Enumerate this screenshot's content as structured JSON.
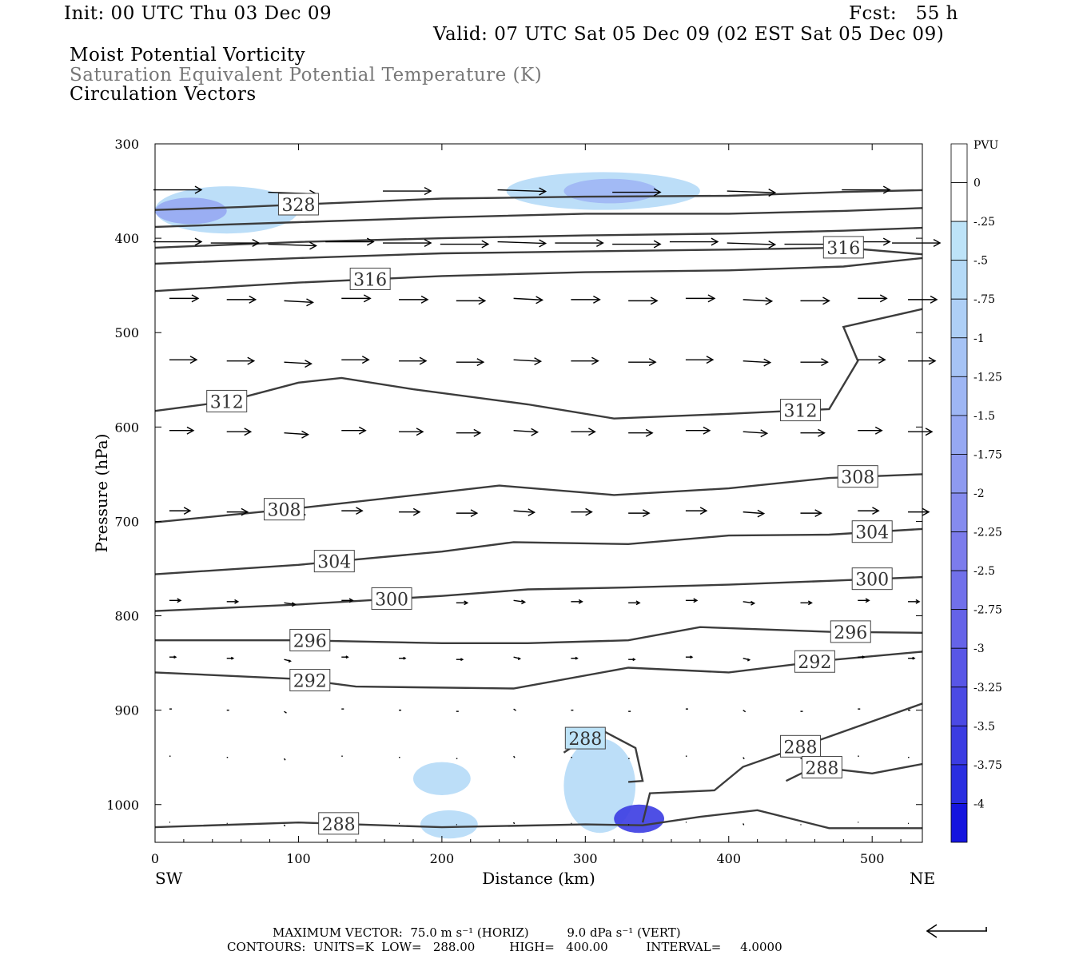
{
  "header": {
    "init": "Init: 00 UTC Thu 03 Dec 09",
    "fcst": "Fcst:   55 h",
    "valid": "Valid: 07 UTC Sat 05 Dec 09 (02 EST Sat 05 Dec 09)",
    "title_line1": "Moist Potential Vorticity",
    "title_line2": "Saturation Equivalent Potential Temperature (K)",
    "title_line3": "Circulation Vectors"
  },
  "footer": {
    "max_vector": "MAXIMUM VECTOR:  75.0 m s⁻¹ (HORIZ)          9.0 dPa s⁻¹ (VERT)",
    "contours": "CONTOURS:  UNITS=K  LOW=   288.00         HIGH=   400.00          INTERVAL=     4.0000"
  },
  "chart_data": {
    "type": "line",
    "xlabel": "Distance (km)",
    "ylabel": "Pressure (hPa)",
    "xlim": [
      0,
      535
    ],
    "ylim": [
      1040,
      300
    ],
    "xticks": [
      0,
      100,
      200,
      300,
      400,
      500
    ],
    "yticks": [
      300,
      400,
      500,
      600,
      700,
      800,
      900,
      1000
    ],
    "x_endpoints": {
      "left": "SW",
      "right": "NE"
    },
    "colorbar": {
      "unit": "PVU",
      "labels": [
        "0",
        "-.25",
        "-.5",
        "-.75",
        "-1",
        "-1.25",
        "-1.5",
        "-1.75",
        "-2",
        "-2.25",
        "-2.5",
        "-2.75",
        "-3",
        "-3.25",
        "-3.5",
        "-3.75",
        "-4"
      ],
      "colors": [
        "#ffffff",
        "#ffffff",
        "#bde3f8",
        "#b5daf7",
        "#aecff6",
        "#a6c3f5",
        "#9eb6f4",
        "#96a8f2",
        "#8e9af0",
        "#858bee",
        "#7c7cec",
        "#7170ea",
        "#6563e8",
        "#5856e6",
        "#4b4ae4",
        "#3b3ce2",
        "#2a2ee0",
        "#1515de"
      ]
    },
    "contour_series": [
      {
        "label": "328",
        "points": [
          [
            0,
            370
          ],
          [
            60,
            367
          ],
          [
            120,
            363
          ],
          [
            200,
            358
          ],
          [
            300,
            356
          ],
          [
            400,
            355
          ],
          [
            480,
            351
          ],
          [
            535,
            349
          ]
        ]
      },
      {
        "label": "",
        "points": [
          [
            0,
            388
          ],
          [
            100,
            383
          ],
          [
            200,
            378
          ],
          [
            300,
            374
          ],
          [
            400,
            374
          ],
          [
            480,
            371
          ],
          [
            535,
            368
          ]
        ]
      },
      {
        "label": "",
        "points": [
          [
            0,
            410
          ],
          [
            100,
            404
          ],
          [
            200,
            400
          ],
          [
            300,
            397
          ],
          [
            400,
            395
          ],
          [
            480,
            392
          ],
          [
            535,
            389
          ]
        ]
      },
      {
        "label": "316",
        "points": [
          [
            0,
            427
          ],
          [
            100,
            421
          ],
          [
            200,
            416
          ],
          [
            300,
            414
          ],
          [
            400,
            412
          ],
          [
            480,
            410
          ],
          [
            535,
            417
          ]
        ]
      },
      {
        "label": "316",
        "points": [
          [
            0,
            456
          ],
          [
            100,
            447
          ],
          [
            200,
            440
          ],
          [
            300,
            436
          ],
          [
            400,
            434
          ],
          [
            480,
            430
          ],
          [
            535,
            421
          ]
        ]
      },
      {
        "label": "312",
        "points": [
          [
            0,
            583
          ],
          [
            50,
            573
          ],
          [
            100,
            553
          ],
          [
            130,
            548
          ],
          [
            180,
            560
          ],
          [
            260,
            576
          ],
          [
            320,
            591
          ],
          [
            400,
            586
          ],
          [
            470,
            581
          ],
          [
            490,
            530
          ],
          [
            480,
            494
          ],
          [
            535,
            475
          ]
        ]
      },
      {
        "label": "308",
        "points": [
          [
            0,
            701
          ],
          [
            100,
            686
          ],
          [
            200,
            669
          ],
          [
            240,
            662
          ],
          [
            320,
            672
          ],
          [
            400,
            665
          ],
          [
            470,
            654
          ],
          [
            535,
            650
          ]
        ]
      },
      {
        "label": "304",
        "points": [
          [
            0,
            756
          ],
          [
            100,
            746
          ],
          [
            200,
            732
          ],
          [
            250,
            722
          ],
          [
            330,
            724
          ],
          [
            400,
            715
          ],
          [
            470,
            714
          ],
          [
            535,
            708
          ]
        ]
      },
      {
        "label": "300",
        "points": [
          [
            0,
            795
          ],
          [
            100,
            788
          ],
          [
            200,
            779
          ],
          [
            260,
            772
          ],
          [
            330,
            770
          ],
          [
            400,
            767
          ],
          [
            470,
            763
          ],
          [
            535,
            759
          ]
        ]
      },
      {
        "label": "296",
        "points": [
          [
            0,
            826
          ],
          [
            100,
            826
          ],
          [
            200,
            829
          ],
          [
            260,
            829
          ],
          [
            330,
            826
          ],
          [
            380,
            812
          ],
          [
            470,
            817
          ],
          [
            535,
            818
          ]
        ]
      },
      {
        "label": "292",
        "points": [
          [
            0,
            860
          ],
          [
            100,
            867
          ],
          [
            140,
            875
          ],
          [
            250,
            877
          ],
          [
            330,
            855
          ],
          [
            400,
            860
          ],
          [
            470,
            847
          ],
          [
            535,
            838
          ]
        ]
      },
      {
        "label": "288",
        "points": [
          [
            0,
            1024
          ],
          [
            100,
            1019
          ],
          [
            200,
            1024
          ],
          [
            300,
            1021
          ],
          [
            340,
            1022
          ],
          [
            380,
            1013
          ],
          [
            420,
            1006
          ],
          [
            470,
            1025
          ],
          [
            535,
            1025
          ]
        ]
      },
      {
        "label": "288",
        "points": [
          [
            340,
            1019
          ],
          [
            345,
            988
          ],
          [
            390,
            985
          ],
          [
            410,
            960
          ],
          [
            470,
            928
          ],
          [
            535,
            893
          ]
        ]
      },
      {
        "label": "288",
        "points": [
          [
            285,
            945
          ],
          [
            310,
            920
          ],
          [
            335,
            940
          ],
          [
            340,
            975
          ],
          [
            330,
            976
          ]
        ]
      },
      {
        "label": "288",
        "points": [
          [
            440,
            975
          ],
          [
            460,
            960
          ],
          [
            500,
            967
          ],
          [
            535,
            957
          ]
        ]
      }
    ],
    "pv_regions": [
      {
        "level": "-.5",
        "x": [
          0,
          100
        ],
        "y": [
          345,
          395
        ]
      },
      {
        "level": "-1.5",
        "x": [
          0,
          50
        ],
        "y": [
          357,
          385
        ]
      },
      {
        "level": "-.5",
        "x": [
          245,
          380
        ],
        "y": [
          330,
          370
        ]
      },
      {
        "level": "-1.25",
        "x": [
          285,
          350
        ],
        "y": [
          337,
          363
        ]
      },
      {
        "level": "-.5",
        "x": [
          180,
          220
        ],
        "y": [
          955,
          990
        ]
      },
      {
        "level": "-.5",
        "x": [
          285,
          335
        ],
        "y": [
          930,
          1030
        ]
      },
      {
        "level": "-.5",
        "x": [
          185,
          225
        ],
        "y": [
          1006,
          1036
        ]
      },
      {
        "level": "-3.5",
        "x": [
          320,
          355
        ],
        "y": [
          1000,
          1030
        ]
      }
    ],
    "vector_rows_hpa": [
      350,
      405,
      465,
      530,
      605,
      690,
      785,
      845,
      900,
      950,
      1020
    ],
    "vector_columns_km": [
      10,
      50,
      90,
      130,
      170,
      210,
      250,
      290,
      330,
      370,
      410,
      450,
      490,
      525
    ]
  }
}
